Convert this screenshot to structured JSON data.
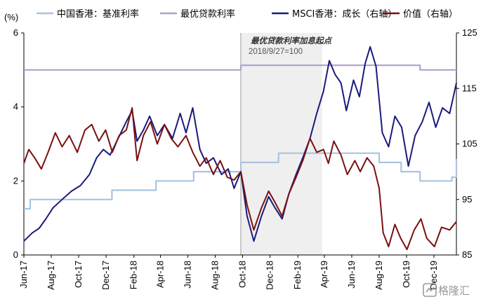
{
  "chart_data": {
    "type": "line",
    "left_unit": "(%)",
    "y_left": {
      "min": 0,
      "max": 6,
      "ticks": [
        "0",
        "2",
        "4",
        "6"
      ]
    },
    "y_right": {
      "min": 85,
      "max": 125,
      "ticks": [
        "85",
        "95",
        "105",
        "115",
        "125"
      ]
    },
    "x_range": [
      "2017-06-01",
      "2020-01-20"
    ],
    "x_ticks": [
      {
        "label": "Jun-17",
        "date": "2017-06-01"
      },
      {
        "label": "Aug-17",
        "date": "2017-08-01"
      },
      {
        "label": "Oct-17",
        "date": "2017-10-01"
      },
      {
        "label": "Dec-17",
        "date": "2017-12-01"
      },
      {
        "label": "Feb-18",
        "date": "2018-02-01"
      },
      {
        "label": "Apr-18",
        "date": "2018-04-01"
      },
      {
        "label": "Jun-18",
        "date": "2018-06-01"
      },
      {
        "label": "Aug-18",
        "date": "2018-08-01"
      },
      {
        "label": "Oct-18",
        "date": "2018-10-01"
      },
      {
        "label": "Dec-18",
        "date": "2018-12-01"
      },
      {
        "label": "Feb-19",
        "date": "2019-02-01"
      },
      {
        "label": "Apr-19",
        "date": "2019-04-01"
      },
      {
        "label": "Jun-19",
        "date": "2019-06-01"
      },
      {
        "label": "Aug-19",
        "date": "2019-08-01"
      },
      {
        "label": "Oct-19",
        "date": "2019-10-01"
      },
      {
        "label": "Dec-19",
        "date": "2019-12-01"
      }
    ],
    "shaded_region": {
      "start": "2018-09-27",
      "end": "2019-03-27"
    },
    "annotation": {
      "title": "最优贷款利率加息起点",
      "subtitle": "2018/9/27=100"
    },
    "series": [
      {
        "name": "中国香港：基准利率",
        "axis": "left",
        "color": "#a9c4e0",
        "step": true,
        "points": [
          [
            "2017-06-01",
            1.25
          ],
          [
            "2017-06-15",
            1.5
          ],
          [
            "2017-12-14",
            1.75
          ],
          [
            "2018-03-22",
            2.0
          ],
          [
            "2018-06-14",
            2.25
          ],
          [
            "2018-09-27",
            2.5
          ],
          [
            "2018-12-20",
            2.75
          ],
          [
            "2019-08-01",
            2.5
          ],
          [
            "2019-09-19",
            2.25
          ],
          [
            "2019-10-31",
            2.0
          ],
          [
            "2020-01-10",
            2.1
          ],
          [
            "2020-01-20",
            2.6
          ]
        ]
      },
      {
        "name": "最优贷款利率",
        "axis": "left",
        "color": "#b0a0cc",
        "step": true,
        "points": [
          [
            "2017-06-01",
            5.0
          ],
          [
            "2018-09-27",
            5.125
          ],
          [
            "2019-10-31",
            5.0
          ],
          [
            "2020-01-20",
            5.0
          ]
        ]
      },
      {
        "name": "MSCI香港：成长（右轴）",
        "axis": "right",
        "color": "#1a1a7e",
        "step": false,
        "points": [
          [
            "2017-06-01",
            87.5
          ],
          [
            "2017-06-20",
            89.0
          ],
          [
            "2017-07-05",
            89.8
          ],
          [
            "2017-07-20",
            91.5
          ],
          [
            "2017-08-05",
            93.5
          ],
          [
            "2017-08-25",
            95.0
          ],
          [
            "2017-09-15",
            96.5
          ],
          [
            "2017-10-05",
            97.5
          ],
          [
            "2017-10-25",
            99.5
          ],
          [
            "2017-11-10",
            102.5
          ],
          [
            "2017-11-25",
            104.0
          ],
          [
            "2017-12-10",
            103.0
          ],
          [
            "2017-12-28",
            106.0
          ],
          [
            "2018-01-15",
            109.0
          ],
          [
            "2018-01-28",
            111.0
          ],
          [
            "2018-02-08",
            105.5
          ],
          [
            "2018-02-22",
            107.5
          ],
          [
            "2018-03-08",
            110.0
          ],
          [
            "2018-03-25",
            106.5
          ],
          [
            "2018-04-10",
            108.5
          ],
          [
            "2018-04-28",
            106.0
          ],
          [
            "2018-05-15",
            110.5
          ],
          [
            "2018-05-28",
            107.0
          ],
          [
            "2018-06-12",
            111.5
          ],
          [
            "2018-06-28",
            104.0
          ],
          [
            "2018-07-12",
            101.5
          ],
          [
            "2018-07-28",
            102.5
          ],
          [
            "2018-08-15",
            99.5
          ],
          [
            "2018-08-30",
            100.5
          ],
          [
            "2018-09-12",
            97.0
          ],
          [
            "2018-09-27",
            100.0
          ],
          [
            "2018-10-11",
            92.0
          ],
          [
            "2018-10-26",
            87.5
          ],
          [
            "2018-11-12",
            92.0
          ],
          [
            "2018-11-28",
            95.5
          ],
          [
            "2018-12-12",
            93.5
          ],
          [
            "2018-12-28",
            91.5
          ],
          [
            "2019-01-12",
            96.0
          ],
          [
            "2019-01-28",
            99.5
          ],
          [
            "2019-02-12",
            102.5
          ],
          [
            "2019-02-28",
            106.0
          ],
          [
            "2019-03-15",
            110.5
          ],
          [
            "2019-03-30",
            114.5
          ],
          [
            "2019-04-12",
            120.0
          ],
          [
            "2019-04-25",
            117.5
          ],
          [
            "2019-05-08",
            116.0
          ],
          [
            "2019-05-20",
            111.0
          ],
          [
            "2019-06-05",
            116.5
          ],
          [
            "2019-06-18",
            113.5
          ],
          [
            "2019-07-01",
            119.5
          ],
          [
            "2019-07-12",
            122.5
          ],
          [
            "2019-07-25",
            119.0
          ],
          [
            "2019-08-08",
            107.0
          ],
          [
            "2019-08-22",
            104.5
          ],
          [
            "2019-09-05",
            110.0
          ],
          [
            "2019-09-20",
            108.0
          ],
          [
            "2019-10-05",
            101.0
          ],
          [
            "2019-10-20",
            106.5
          ],
          [
            "2019-11-05",
            109.0
          ],
          [
            "2019-11-20",
            112.5
          ],
          [
            "2019-12-05",
            108.0
          ],
          [
            "2019-12-20",
            111.5
          ],
          [
            "2020-01-05",
            110.5
          ],
          [
            "2020-01-20",
            116.0
          ]
        ]
      },
      {
        "name": "价值（右轴）",
        "axis": "right",
        "color": "#7a1010",
        "step": false,
        "points": [
          [
            "2017-06-01",
            101.5
          ],
          [
            "2017-06-12",
            104.0
          ],
          [
            "2017-06-25",
            102.5
          ],
          [
            "2017-07-10",
            100.5
          ],
          [
            "2017-07-25",
            103.5
          ],
          [
            "2017-08-10",
            107.0
          ],
          [
            "2017-08-25",
            104.5
          ],
          [
            "2017-09-10",
            106.5
          ],
          [
            "2017-09-28",
            103.5
          ],
          [
            "2017-10-15",
            107.5
          ],
          [
            "2017-10-30",
            108.5
          ],
          [
            "2017-11-15",
            105.5
          ],
          [
            "2017-11-30",
            107.5
          ],
          [
            "2017-12-15",
            103.5
          ],
          [
            "2017-12-30",
            106.5
          ],
          [
            "2018-01-15",
            107.5
          ],
          [
            "2018-01-28",
            111.5
          ],
          [
            "2018-02-08",
            102.0
          ],
          [
            "2018-02-22",
            106.5
          ],
          [
            "2018-03-10",
            109.0
          ],
          [
            "2018-03-25",
            105.0
          ],
          [
            "2018-04-10",
            108.5
          ],
          [
            "2018-04-25",
            106.0
          ],
          [
            "2018-05-10",
            104.5
          ],
          [
            "2018-05-28",
            106.5
          ],
          [
            "2018-06-12",
            103.5
          ],
          [
            "2018-06-28",
            101.0
          ],
          [
            "2018-07-12",
            102.5
          ],
          [
            "2018-07-28",
            99.5
          ],
          [
            "2018-08-12",
            102.0
          ],
          [
            "2018-08-28",
            99.0
          ],
          [
            "2018-09-12",
            98.5
          ],
          [
            "2018-09-27",
            100.0
          ],
          [
            "2018-10-11",
            94.0
          ],
          [
            "2018-10-26",
            89.5
          ],
          [
            "2018-11-12",
            93.5
          ],
          [
            "2018-11-28",
            96.5
          ],
          [
            "2018-12-12",
            94.5
          ],
          [
            "2018-12-28",
            92.0
          ],
          [
            "2019-01-12",
            96.0
          ],
          [
            "2019-01-28",
            99.0
          ],
          [
            "2019-02-12",
            102.0
          ],
          [
            "2019-02-28",
            106.0
          ],
          [
            "2019-03-15",
            103.5
          ],
          [
            "2019-03-30",
            104.0
          ],
          [
            "2019-04-10",
            101.5
          ],
          [
            "2019-04-22",
            105.5
          ],
          [
            "2019-05-08",
            103.0
          ],
          [
            "2019-05-22",
            99.5
          ],
          [
            "2019-06-08",
            102.0
          ],
          [
            "2019-06-20",
            100.0
          ],
          [
            "2019-07-05",
            102.5
          ],
          [
            "2019-07-20",
            101.0
          ],
          [
            "2019-08-01",
            97.0
          ],
          [
            "2019-08-10",
            89.0
          ],
          [
            "2019-08-22",
            86.5
          ],
          [
            "2019-09-05",
            90.5
          ],
          [
            "2019-09-18",
            88.0
          ],
          [
            "2019-10-02",
            86.0
          ],
          [
            "2019-10-18",
            89.5
          ],
          [
            "2019-11-02",
            91.5
          ],
          [
            "2019-11-15",
            88.0
          ],
          [
            "2019-12-02",
            86.5
          ],
          [
            "2019-12-18",
            90.0
          ],
          [
            "2020-01-05",
            89.5
          ],
          [
            "2020-01-20",
            91.0
          ]
        ]
      }
    ]
  },
  "watermark": {
    "text": "格隆汇"
  }
}
